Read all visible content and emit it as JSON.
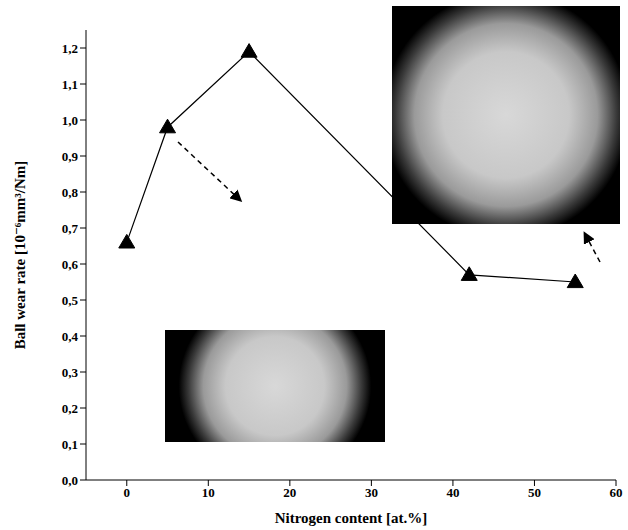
{
  "chart_data": {
    "type": "line",
    "x_label": "Nitrogen content [at.%]",
    "y_label": "Ball wear rate [10⁻⁶mm³/Nm]",
    "x": [
      0,
      5,
      15,
      42,
      55
    ],
    "values": [
      0.66,
      0.98,
      1.19,
      0.57,
      0.55
    ],
    "color": "#000000",
    "marker": "triangle",
    "line_style": "solid",
    "xlim": [
      -5,
      60
    ],
    "xticks": [
      0,
      10,
      20,
      30,
      40,
      50,
      60
    ],
    "ylim": [
      0,
      1.25
    ],
    "yticks": [
      {
        "value": 0,
        "label": "0,0"
      },
      {
        "value": 0.1,
        "label": "0,1"
      },
      {
        "value": 0.2,
        "label": "0,2"
      },
      {
        "value": 0.3,
        "label": "0,3"
      },
      {
        "value": 0.4,
        "label": "0,4"
      },
      {
        "value": 0.5,
        "label": "0,5"
      },
      {
        "value": 0.6,
        "label": "0,6"
      },
      {
        "value": 0.7,
        "label": "0,7"
      },
      {
        "value": 0.8,
        "label": "0,8"
      },
      {
        "value": 0.9,
        "label": "0,9"
      },
      {
        "value": 1,
        "label": "1,0"
      },
      {
        "value": 1.1,
        "label": "1,1"
      },
      {
        "value": 1.2,
        "label": "1,2"
      }
    ],
    "grid": false
  }
}
